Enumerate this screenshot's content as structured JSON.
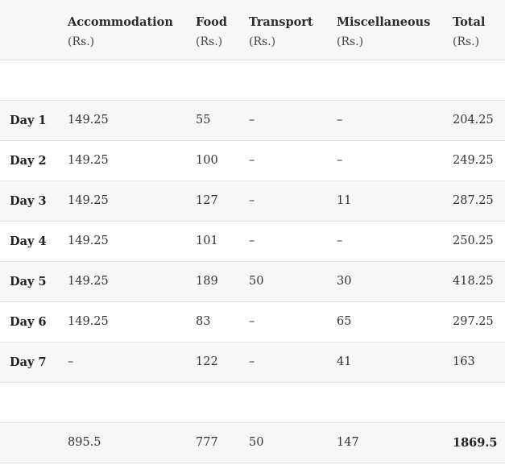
{
  "table": {
    "headers": [
      {
        "name": "",
        "unit": ""
      },
      {
        "name": "Accommodation",
        "unit": "(Rs.)"
      },
      {
        "name": "Food",
        "unit": "(Rs.)"
      },
      {
        "name": "Transport",
        "unit": "(Rs.)"
      },
      {
        "name": "Miscellaneous",
        "unit": "(Rs.)"
      },
      {
        "name": "Total",
        "unit": "(Rs.)"
      }
    ],
    "rows": [
      {
        "day": "Day 1",
        "accommodation": "149.25",
        "food": "55",
        "transport": "–",
        "misc": "–",
        "total": "204.25"
      },
      {
        "day": "Day 2",
        "accommodation": "149.25",
        "food": "100",
        "transport": "–",
        "misc": "–",
        "total": "249.25"
      },
      {
        "day": "Day 3",
        "accommodation": "149.25",
        "food": "127",
        "transport": "–",
        "misc": "11",
        "total": "287.25"
      },
      {
        "day": "Day 4",
        "accommodation": "149.25",
        "food": "101",
        "transport": "–",
        "misc": "–",
        "total": "250.25"
      },
      {
        "day": "Day 5",
        "accommodation": "149.25",
        "food": "189",
        "transport": "50",
        "misc": "30",
        "total": "418.25"
      },
      {
        "day": "Day 6",
        "accommodation": "149.25",
        "food": "83",
        "transport": "–",
        "misc": "65",
        "total": "297.25"
      },
      {
        "day": "Day 7",
        "accommodation": "–",
        "food": "122",
        "transport": "–",
        "misc": "41",
        "total": "163"
      }
    ],
    "totals": {
      "label": "",
      "accommodation": "895.5",
      "food": "777",
      "transport": "50",
      "misc": "147",
      "total": "1869.5"
    }
  }
}
